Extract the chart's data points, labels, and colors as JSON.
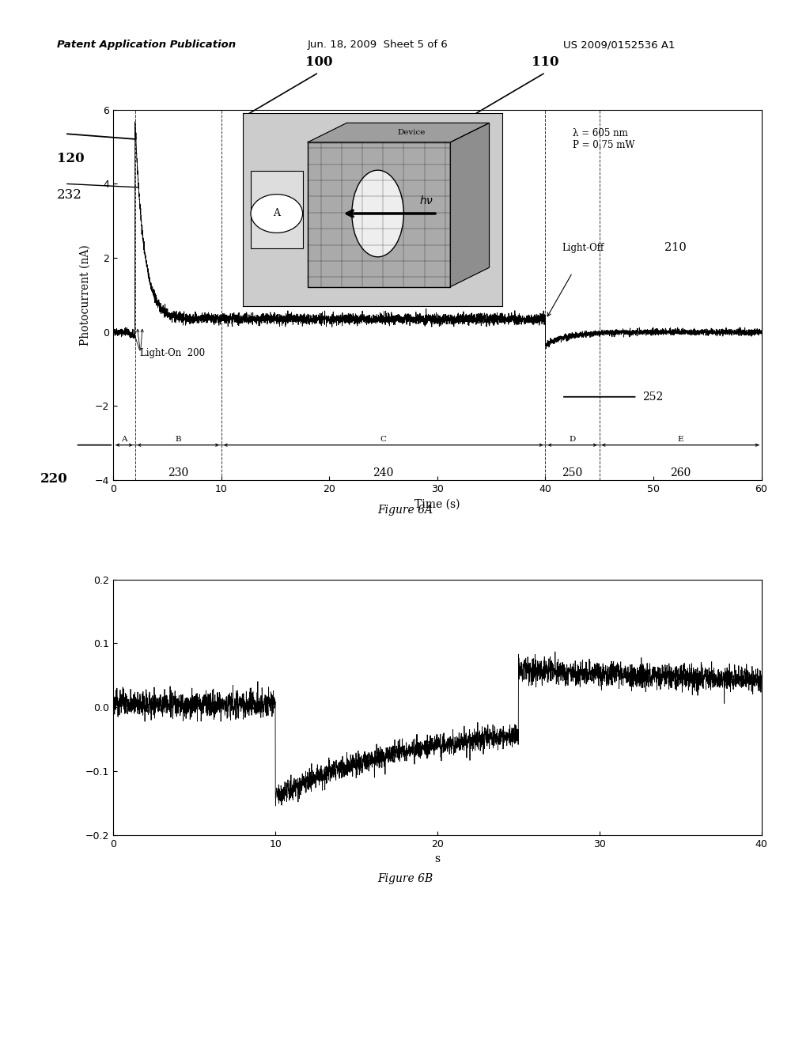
{
  "header_left": "Patent Application Publication",
  "header_mid": "Jun. 18, 2009  Sheet 5 of 6",
  "header_right": "US 2009/0152536 A1",
  "fig6a": {
    "xlabel": "Time (s)",
    "ylabel": "Photocurrent (nA)",
    "xlim": [
      0,
      60
    ],
    "ylim": [
      -4,
      6
    ],
    "yticks": [
      -4,
      -2,
      0,
      2,
      4,
      6
    ],
    "xticks": [
      0,
      10,
      20,
      30,
      40,
      50,
      60
    ],
    "lambda_text": "λ = 605 nm\nP = 0.75 mW"
  },
  "fig6b": {
    "xlabel": "s",
    "xlim": [
      0,
      40
    ],
    "ylim": [
      -0.2,
      0.2
    ],
    "yticks": [
      -0.2,
      -0.1,
      0.0,
      0.1,
      0.2
    ],
    "xticks": [
      0,
      10,
      20,
      30,
      40
    ]
  },
  "figure6a_caption": "Figure 6A",
  "figure6b_caption": "Figure 6B",
  "background_color": "#ffffff"
}
